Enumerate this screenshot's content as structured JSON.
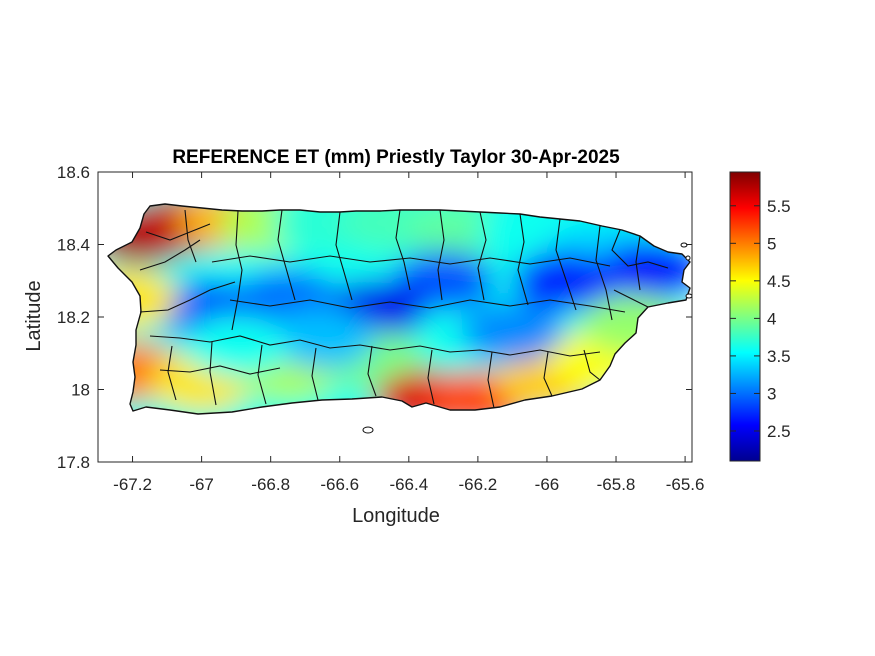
{
  "chart_data": {
    "type": "heatmap",
    "title": "REFERENCE ET (mm) Priestly Taylor 30-Apr-2025",
    "xlabel": "Longitude",
    "ylabel": "Latitude",
    "xlim": [
      -67.3,
      -65.58
    ],
    "ylim": [
      17.8,
      18.6
    ],
    "xticks": [
      -67.2,
      -67,
      -66.8,
      -66.6,
      -66.4,
      -66.2,
      -66,
      -65.8,
      -65.6
    ],
    "xtick_labels": [
      "-67.2",
      "-67",
      "-66.8",
      "-66.6",
      "-66.4",
      "-66.2",
      "-66",
      "-65.8",
      "-65.6"
    ],
    "yticks": [
      17.8,
      18,
      18.2,
      18.4,
      18.6
    ],
    "ytick_labels": [
      "17.8",
      "18",
      "18.2",
      "18.4",
      "18.6"
    ],
    "colorbar": {
      "range": [
        2.1,
        5.95
      ],
      "ticks": [
        2.5,
        3,
        3.5,
        4,
        4.5,
        5,
        5.5
      ],
      "tick_labels": [
        "2.5",
        "3",
        "3.5",
        "4",
        "4.5",
        "5",
        "5.5"
      ],
      "colormap": "jet",
      "colors": [
        "#00008f",
        "#0000ff",
        "#0080ff",
        "#00ffff",
        "#80ff80",
        "#ffff00",
        "#ff8000",
        "#ff0000",
        "#800000"
      ]
    },
    "grid": false,
    "box": true,
    "pattern": [
      {
        "lon": -67.17,
        "lat": 18.43,
        "value": 5.8
      },
      {
        "lon": -67.05,
        "lat": 18.46,
        "value": 5.7
      },
      {
        "lon": -66.92,
        "lat": 18.47,
        "value": 4.8
      },
      {
        "lon": -66.8,
        "lat": 18.46,
        "value": 4.2
      },
      {
        "lon": -66.65,
        "lat": 18.46,
        "value": 3.7
      },
      {
        "lon": -66.45,
        "lat": 18.46,
        "value": 3.8
      },
      {
        "lon": -66.25,
        "lat": 18.44,
        "value": 3.9
      },
      {
        "lon": -66.05,
        "lat": 18.43,
        "value": 3.6
      },
      {
        "lon": -65.85,
        "lat": 18.38,
        "value": 3.4
      },
      {
        "lon": -65.7,
        "lat": 18.33,
        "value": 2.6
      },
      {
        "lon": -65.95,
        "lat": 18.3,
        "value": 2.7
      },
      {
        "lon": -66.3,
        "lat": 18.3,
        "value": 2.9
      },
      {
        "lon": -66.5,
        "lat": 18.22,
        "value": 2.5
      },
      {
        "lon": -66.75,
        "lat": 18.25,
        "value": 3.0
      },
      {
        "lon": -66.98,
        "lat": 18.22,
        "value": 2.9
      },
      {
        "lon": -67.22,
        "lat": 18.25,
        "value": 4.6
      },
      {
        "lon": -67.2,
        "lat": 18.05,
        "value": 5.0
      },
      {
        "lon": -67.0,
        "lat": 18.02,
        "value": 4.6
      },
      {
        "lon": -66.75,
        "lat": 18.05,
        "value": 4.2
      },
      {
        "lon": -66.5,
        "lat": 18.08,
        "value": 4.0
      },
      {
        "lon": -66.35,
        "lat": 17.97,
        "value": 5.6
      },
      {
        "lon": -66.2,
        "lat": 17.97,
        "value": 5.2
      },
      {
        "lon": -66.0,
        "lat": 18.02,
        "value": 4.7
      },
      {
        "lon": -65.85,
        "lat": 18.08,
        "value": 4.5
      },
      {
        "lon": -65.75,
        "lat": 18.18,
        "value": 4.1
      },
      {
        "lon": -66.1,
        "lat": 18.16,
        "value": 3.1
      },
      {
        "lon": -66.65,
        "lat": 18.14,
        "value": 3.3
      },
      {
        "lon": -66.9,
        "lat": 18.12,
        "value": 3.6
      }
    ]
  }
}
